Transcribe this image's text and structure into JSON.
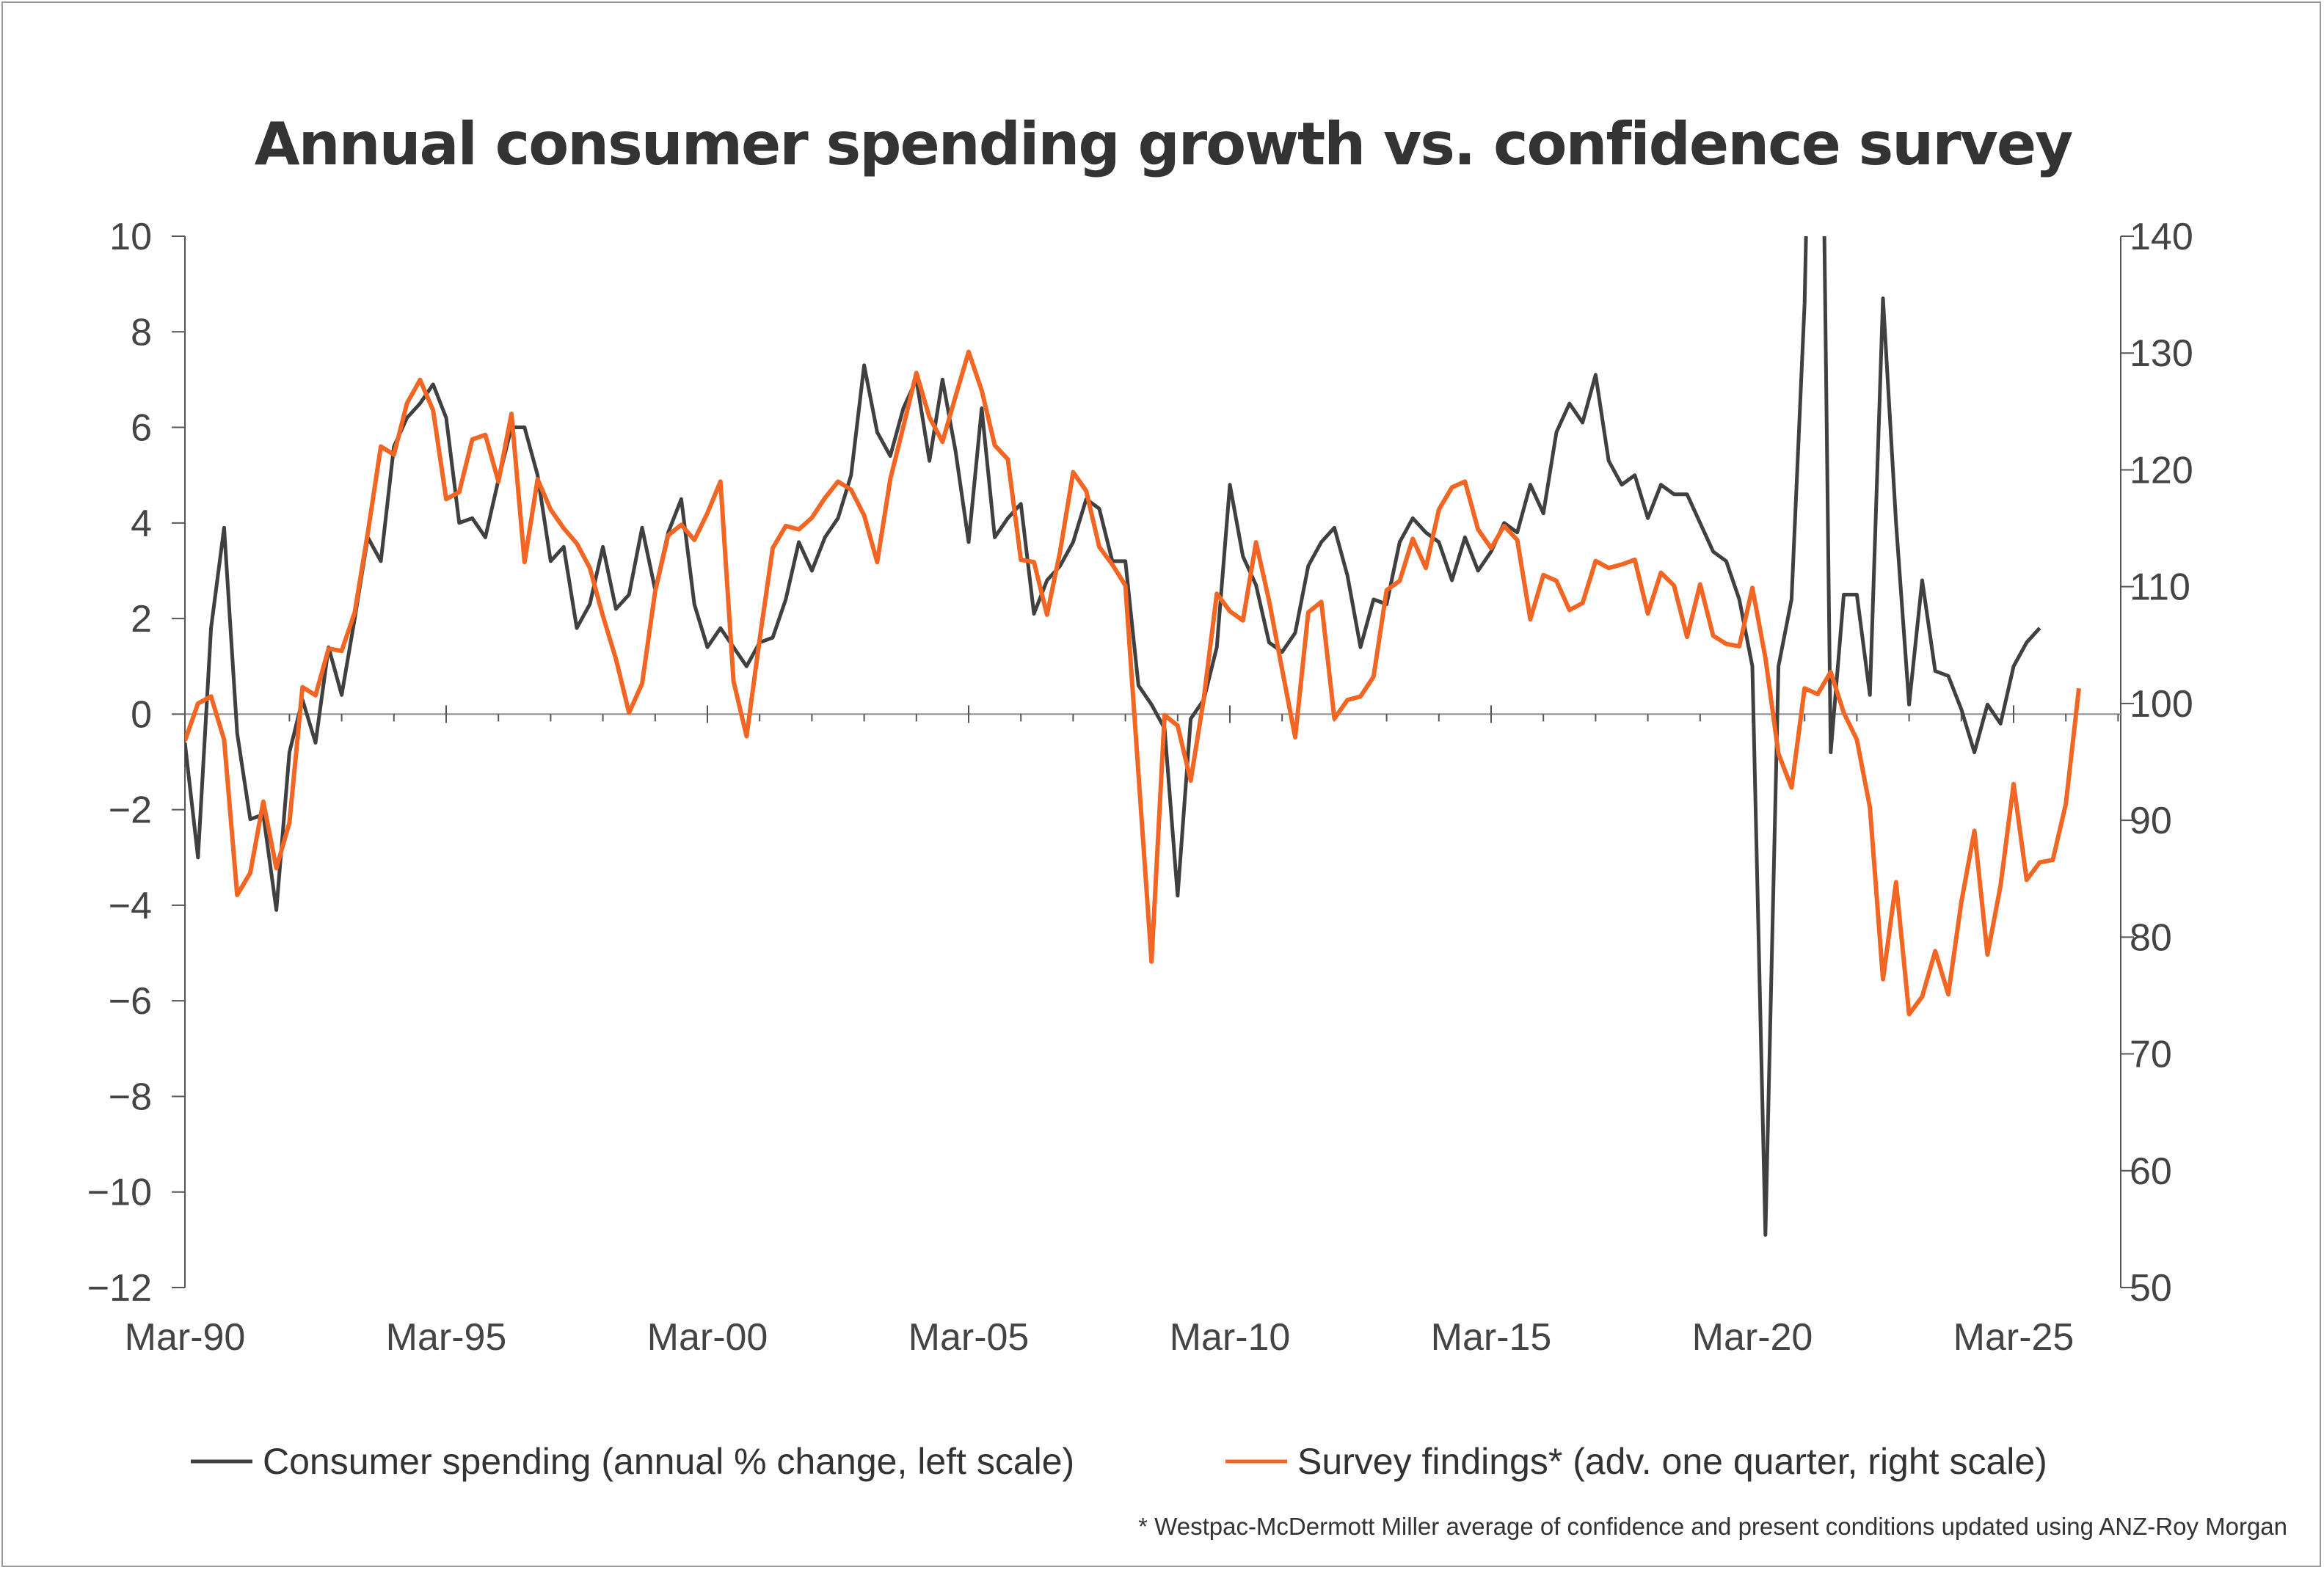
{
  "chart_data": {
    "type": "line",
    "title": "Annual consumer spending growth vs. confidence survey",
    "x_frequency": "quarterly",
    "x_ticks": [
      "Mar-90",
      "Mar-95",
      "Mar-00",
      "Mar-05",
      "Mar-10",
      "Mar-15",
      "Mar-20",
      "Mar-25"
    ],
    "y_left": {
      "ticks": [
        "10",
        "8",
        "6",
        "4",
        "2",
        "0",
        "-2",
        "-4",
        "-6",
        "-8",
        "-10",
        "-12"
      ],
      "range": [
        -12,
        10
      ]
    },
    "y_right": {
      "ticks": [
        "140",
        "130",
        "120",
        "110",
        "100",
        "90",
        "80",
        "70",
        "60",
        "50"
      ],
      "range": [
        50,
        140
      ]
    },
    "grid": false,
    "legend_position": "bottom",
    "series": [
      {
        "name": "Consumer spending (annual % change, left scale)",
        "axis": "left",
        "color": "#404040",
        "start": "Mar-90",
        "values": [
          -0.6,
          -3.0,
          1.8,
          3.9,
          -0.4,
          -2.2,
          -2.1,
          -4.1,
          -0.8,
          0.3,
          -0.6,
          1.4,
          0.4,
          2.0,
          3.7,
          3.2,
          5.6,
          6.2,
          6.5,
          6.9,
          6.2,
          4.0,
          4.1,
          3.7,
          4.9,
          6.0,
          6.0,
          5.0,
          3.2,
          3.5,
          1.8,
          2.3,
          3.5,
          2.2,
          2.5,
          3.9,
          2.6,
          3.8,
          4.5,
          2.3,
          1.4,
          1.8,
          1.4,
          1.0,
          1.5,
          1.6,
          2.4,
          3.6,
          3.0,
          3.7,
          4.1,
          5.0,
          7.3,
          5.9,
          5.4,
          6.4,
          7.0,
          5.3,
          7.0,
          5.5,
          3.6,
          6.4,
          3.7,
          4.1,
          4.4,
          2.1,
          2.8,
          3.1,
          3.6,
          4.5,
          4.3,
          3.2,
          3.2,
          0.6,
          0.2,
          -0.3,
          -3.8,
          -0.1,
          0.3,
          1.4,
          4.8,
          3.3,
          2.7,
          1.5,
          1.3,
          1.7,
          3.1,
          3.6,
          3.9,
          2.9,
          1.4,
          2.4,
          2.3,
          3.6,
          4.1,
          3.8,
          3.6,
          2.8,
          3.7,
          3.0,
          3.4,
          4.0,
          3.8,
          4.8,
          4.2,
          5.9,
          6.5,
          6.1,
          7.1,
          5.3,
          4.8,
          5.0,
          4.1,
          4.8,
          4.6,
          4.6,
          4.0,
          3.4,
          3.2,
          2.4,
          1.0,
          -10.9,
          1.0,
          2.4,
          8.6,
          21.4,
          -0.8,
          2.5,
          2.5,
          0.4,
          8.7,
          4.0,
          0.2,
          2.8,
          0.9,
          0.8,
          0.1,
          -0.8,
          0.2,
          -0.2,
          1.0,
          1.5,
          1.8
        ]
      },
      {
        "name": "Survey findings* (adv. one quarter, right scale)",
        "axis": "right",
        "color": "#f26522",
        "start": "Mar-90",
        "values": [
          96.8,
          100.0,
          100.6,
          96.9,
          83.6,
          85.5,
          91.6,
          85.9,
          89.8,
          101.4,
          100.7,
          104.7,
          104.5,
          107.8,
          114.6,
          122.0,
          121.3,
          125.7,
          127.7,
          125.1,
          117.5,
          118.1,
          122.6,
          123.0,
          119.0,
          124.8,
          112.1,
          119.2,
          116.6,
          115.0,
          113.7,
          111.6,
          107.5,
          103.8,
          99.2,
          101.7,
          109.6,
          114.4,
          115.3,
          114.0,
          116.3,
          119.0,
          101.9,
          97.2,
          105.5,
          113.3,
          115.2,
          114.9,
          115.9,
          117.6,
          119.0,
          118.3,
          116.1,
          112.1,
          119.2,
          123.7,
          128.3,
          124.5,
          122.4,
          126.3,
          130.1,
          126.8,
          122.1,
          120.9,
          112.3,
          112.1,
          107.6,
          113.0,
          119.8,
          118.2,
          113.4,
          111.9,
          110.1,
          94.0,
          77.9,
          99.0,
          98.1,
          93.4,
          100.4,
          109.4,
          107.9,
          107.1,
          113.8,
          108.8,
          102.9,
          97.1,
          107.8,
          108.7,
          98.7,
          100.3,
          100.6,
          102.3,
          109.7,
          110.5,
          114.1,
          111.6,
          116.6,
          118.5,
          119.0,
          114.9,
          113.3,
          115.2,
          114.0,
          107.2,
          111.0,
          110.5,
          108.0,
          108.6,
          112.2,
          111.6,
          111.9,
          112.3,
          107.7,
          111.2,
          110.1,
          105.7,
          110.2,
          105.8,
          105.1,
          104.9,
          109.9,
          103.9,
          95.7,
          92.8,
          101.3,
          100.8,
          102.7,
          99.2,
          96.9,
          91.1,
          76.4,
          84.7,
          73.4,
          74.9,
          78.8,
          75.1,
          83.0,
          89.1,
          78.5,
          84.4,
          93.1,
          84.9,
          86.4,
          86.6,
          91.4,
          101.3
        ]
      }
    ],
    "footnote": "* Westpac-McDermott Miller average of confidence and present conditions updated using ANZ-Roy Morgan"
  }
}
